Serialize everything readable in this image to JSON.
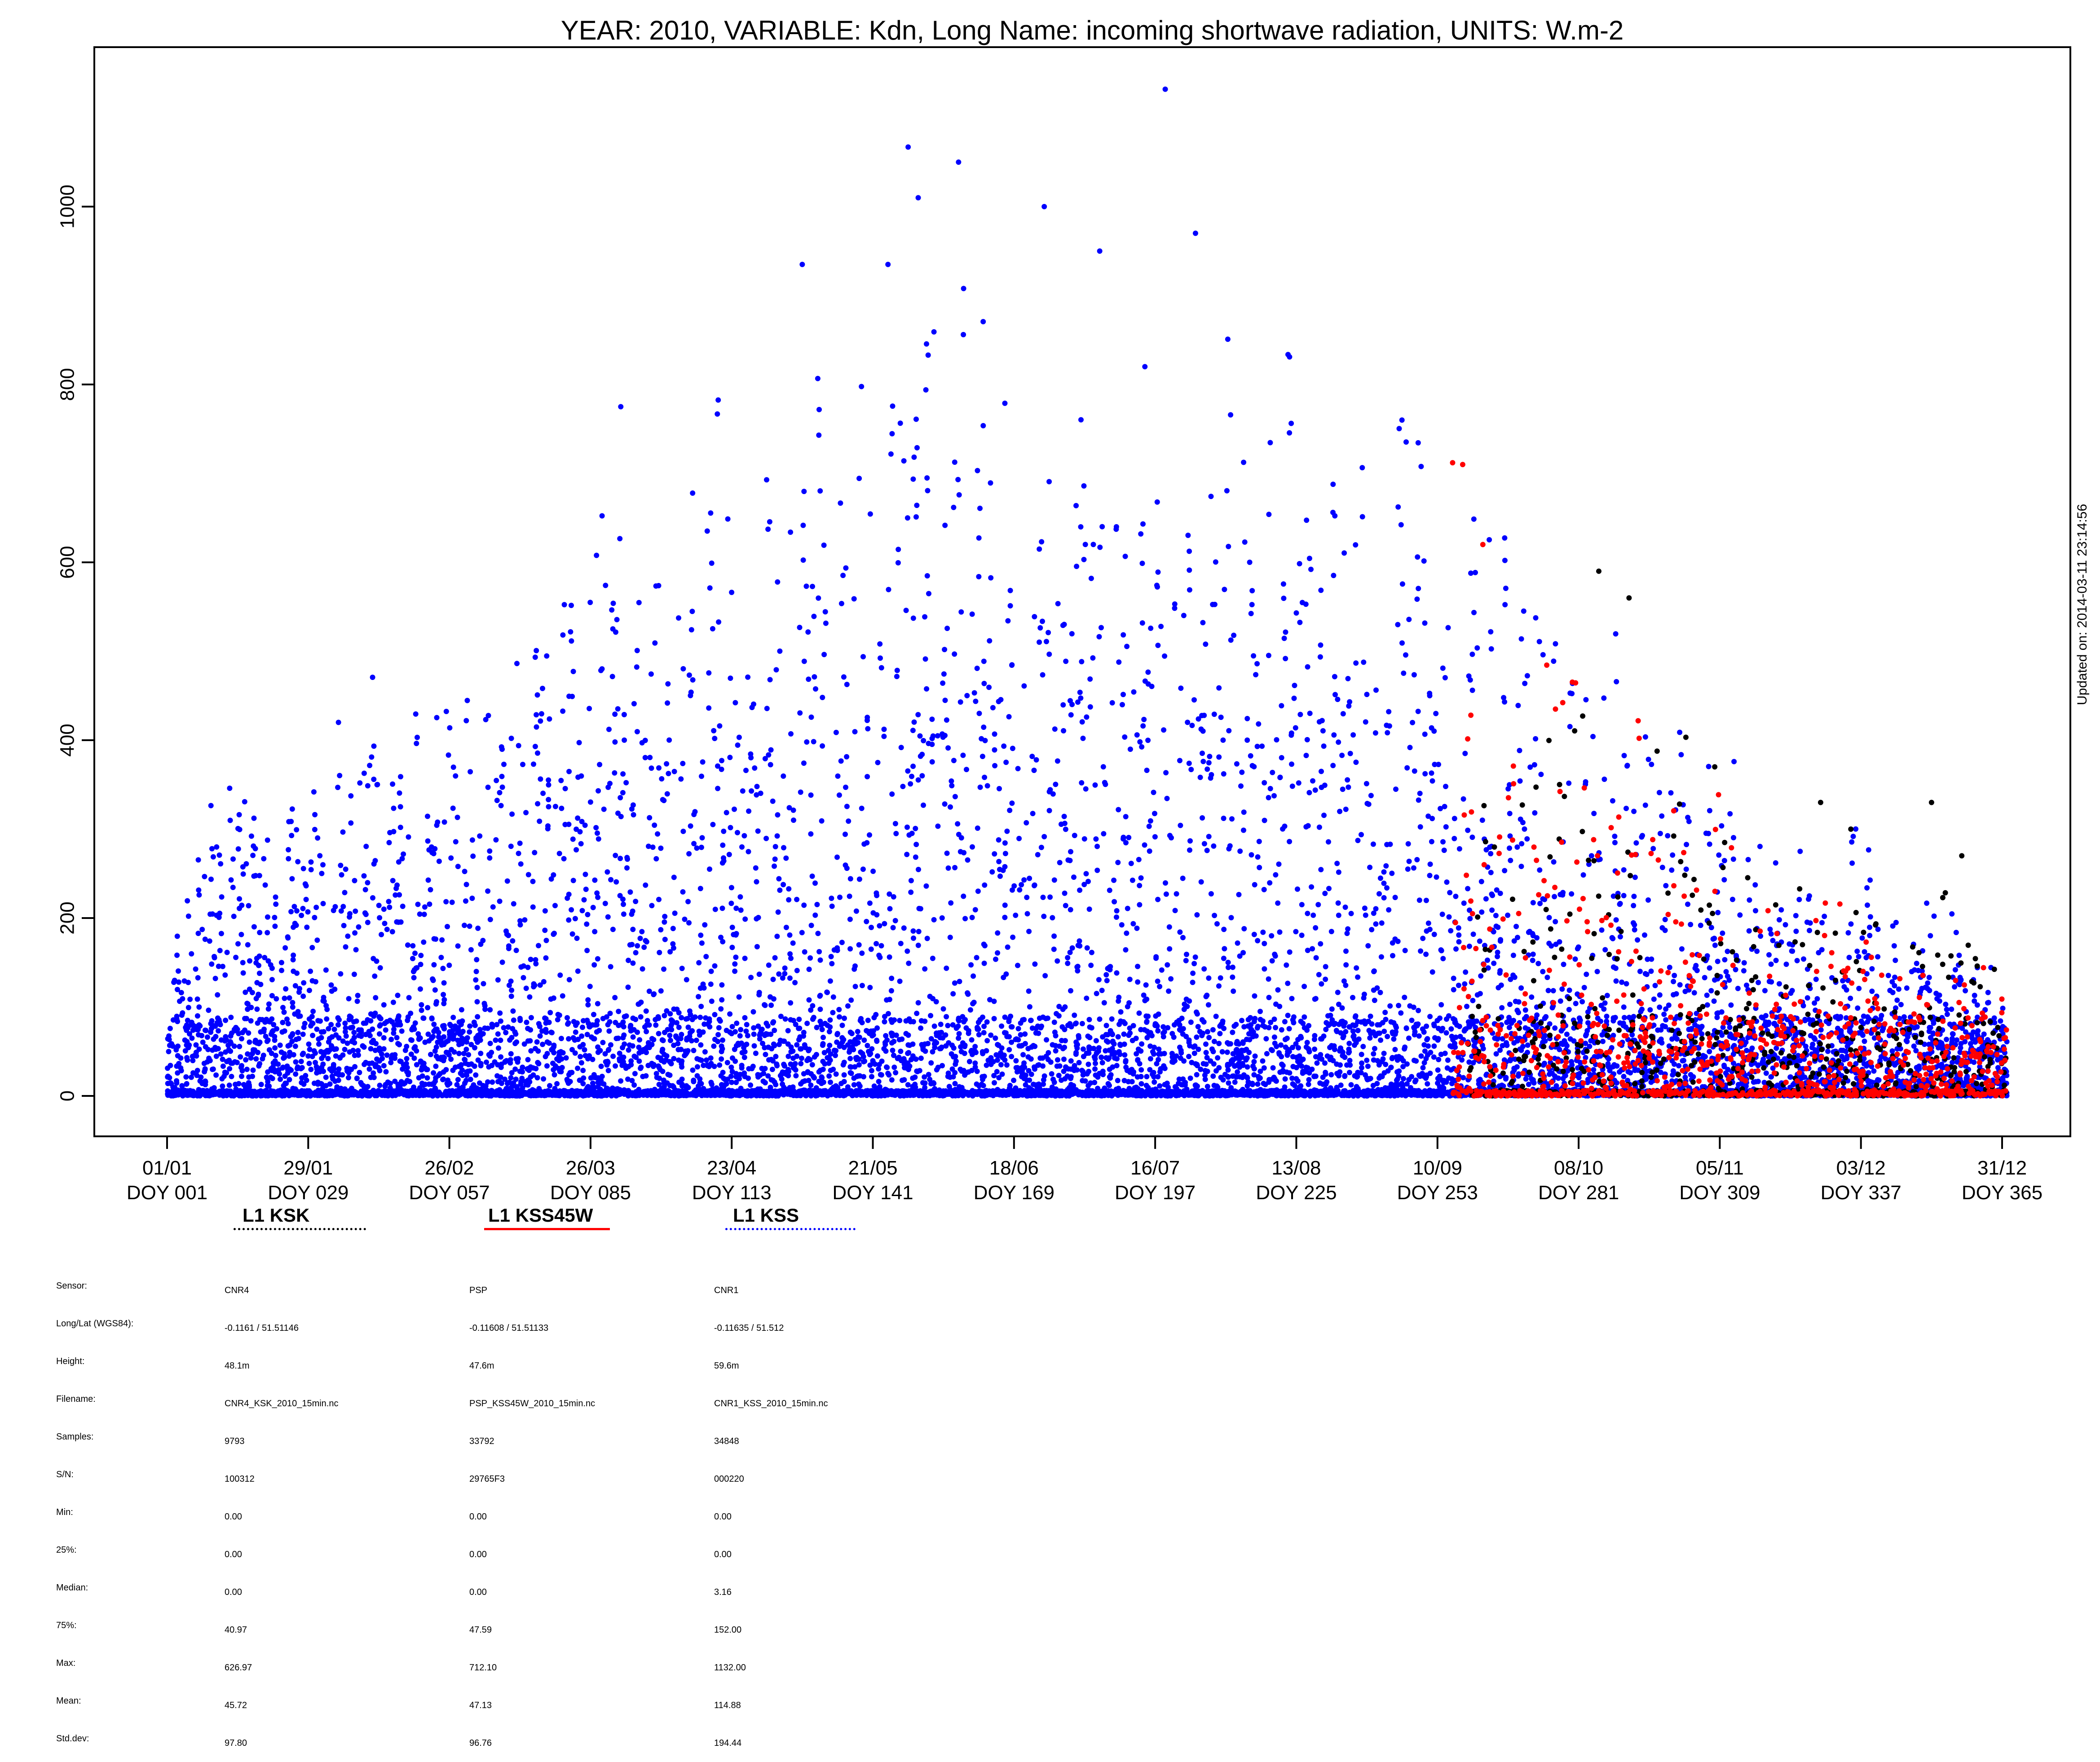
{
  "chart_data": {
    "type": "scatter",
    "title": "YEAR: 2010, VARIABLE: Kdn, Long Name: incoming  shortwave  radiation, UNITS: W.m-2",
    "xlabel": "",
    "ylabel": "",
    "xlim": [
      1,
      365
    ],
    "ylim": [
      -45,
      1180
    ],
    "y_ticks": [
      0,
      200,
      400,
      600,
      800,
      1000
    ],
    "x_ticks": [
      {
        "doy": 1,
        "date": "01/01",
        "label": "DOY 001"
      },
      {
        "doy": 29,
        "date": "29/01",
        "label": "DOY 029"
      },
      {
        "doy": 57,
        "date": "26/02",
        "label": "DOY 057"
      },
      {
        "doy": 85,
        "date": "26/03",
        "label": "DOY 085"
      },
      {
        "doy": 113,
        "date": "23/04",
        "label": "DOY 113"
      },
      {
        "doy": 141,
        "date": "21/05",
        "label": "DOY 141"
      },
      {
        "doy": 169,
        "date": "18/06",
        "label": "DOY 169"
      },
      {
        "doy": 197,
        "date": "16/07",
        "label": "DOY 197"
      },
      {
        "doy": 225,
        "date": "13/08",
        "label": "DOY 225"
      },
      {
        "doy": 253,
        "date": "10/09",
        "label": "DOY 253"
      },
      {
        "doy": 281,
        "date": "08/10",
        "label": "DOY 281"
      },
      {
        "doy": 309,
        "date": "05/11",
        "label": "DOY 309"
      },
      {
        "doy": 337,
        "date": "03/12",
        "label": "DOY 337"
      },
      {
        "doy": 365,
        "date": "31/12",
        "label": "DOY 365"
      }
    ],
    "grid": false,
    "series": [
      {
        "name": "L1 KSK",
        "color": "#000000",
        "line_style": "dotted",
        "doy_range": [
          259,
          365
        ],
        "envelope": [
          [
            259,
            460
          ],
          [
            270,
            570
          ],
          [
            280,
            590
          ],
          [
            290,
            500
          ],
          [
            300,
            450
          ],
          [
            310,
            390
          ],
          [
            320,
            330
          ],
          [
            330,
            310
          ],
          [
            340,
            320
          ],
          [
            350,
            260
          ],
          [
            358,
            270
          ],
          [
            365,
            120
          ]
        ],
        "highlights": [
          [
            285,
            590
          ],
          [
            291,
            560
          ],
          [
            308,
            370
          ],
          [
            329,
            330
          ],
          [
            335,
            300
          ],
          [
            351,
            330
          ],
          [
            357,
            270
          ]
        ]
      },
      {
        "name": "L1 KSS45W",
        "color": "#ff0000",
        "line_style": "solid",
        "doy_range": [
          256,
          365
        ],
        "envelope": [
          [
            256,
            710
          ],
          [
            262,
            620
          ],
          [
            270,
            540
          ],
          [
            280,
            530
          ],
          [
            290,
            480
          ],
          [
            300,
            420
          ],
          [
            310,
            350
          ],
          [
            320,
            300
          ],
          [
            330,
            260
          ],
          [
            340,
            220
          ],
          [
            350,
            200
          ],
          [
            365,
            160
          ]
        ],
        "highlights": [
          [
            256,
            712
          ],
          [
            258,
            710
          ],
          [
            262,
            620
          ]
        ]
      },
      {
        "name": "L1 KSS",
        "color": "#0000ff",
        "line_style": "dotted",
        "doy_range": [
          1,
          365
        ],
        "envelope": [
          [
            1,
            300
          ],
          [
            10,
            360
          ],
          [
            20,
            420
          ],
          [
            30,
            380
          ],
          [
            40,
            480
          ],
          [
            50,
            490
          ],
          [
            60,
            560
          ],
          [
            70,
            660
          ],
          [
            80,
            640
          ],
          [
            90,
            770
          ],
          [
            100,
            780
          ],
          [
            110,
            860
          ],
          [
            120,
            930
          ],
          [
            130,
            940
          ],
          [
            140,
            940
          ],
          [
            150,
            1050
          ],
          [
            160,
            1000
          ],
          [
            170,
            950
          ],
          [
            180,
            950
          ],
          [
            190,
            920
          ],
          [
            200,
            930
          ],
          [
            210,
            930
          ],
          [
            220,
            925
          ],
          [
            230,
            860
          ],
          [
            240,
            820
          ],
          [
            250,
            790
          ],
          [
            260,
            720
          ],
          [
            270,
            630
          ],
          [
            280,
            580
          ],
          [
            290,
            560
          ],
          [
            300,
            480
          ],
          [
            310,
            390
          ],
          [
            320,
            330
          ],
          [
            330,
            310
          ],
          [
            340,
            300
          ],
          [
            350,
            250
          ],
          [
            365,
            200
          ]
        ],
        "highlights": [
          [
            148,
            1067
          ],
          [
            158,
            1050
          ],
          [
            199,
            1132
          ],
          [
            175,
            1000
          ],
          [
            205,
            970
          ],
          [
            127,
            935
          ],
          [
            144,
            935
          ],
          [
            186,
            950
          ],
          [
            91,
            775
          ],
          [
            35,
            420
          ],
          [
            150,
            1010
          ]
        ]
      }
    ]
  },
  "legend": [
    {
      "label": "L1 KSK",
      "color": "#000000",
      "line_style": "dotted"
    },
    {
      "label": "L1 KSS45W",
      "color": "#ff0000",
      "line_style": "solid"
    },
    {
      "label": "L1 KSS",
      "color": "#0000ff",
      "line_style": "dotted"
    }
  ],
  "stats": {
    "labels": [
      "Sensor:",
      "Long/Lat (WGS84):",
      "Height:",
      "Filename:",
      "Samples:",
      "S/N:",
      "Min:",
      "25%:",
      "Median:",
      "75%:",
      "Max:",
      "Mean:",
      "Std.dev:"
    ],
    "columns": [
      [
        "CNR4",
        "-0.1161 / 51.51146",
        "48.1m",
        "CNR4_KSK_2010_15min.nc",
        "9793",
        "100312",
        "0.00",
        "0.00",
        "0.00",
        "40.97",
        "626.97",
        "45.72",
        "97.80"
      ],
      [
        "PSP",
        "-0.11608 / 51.51133",
        "47.6m",
        "PSP_KSS45W_2010_15min.nc",
        "33792",
        "29765F3",
        "0.00",
        "0.00",
        "0.00",
        "47.59",
        "712.10",
        "47.13",
        "96.76"
      ],
      [
        "CNR1",
        "-0.11635 / 51.512",
        "59.6m",
        "CNR1_KSS_2010_15min.nc",
        "34848",
        "000220",
        "0.00",
        "0.00",
        "3.16",
        "152.00",
        "1132.00",
        "114.88",
        "194.44"
      ]
    ]
  },
  "updated_note": "Updated on: 2014-03-11 23:14:56"
}
